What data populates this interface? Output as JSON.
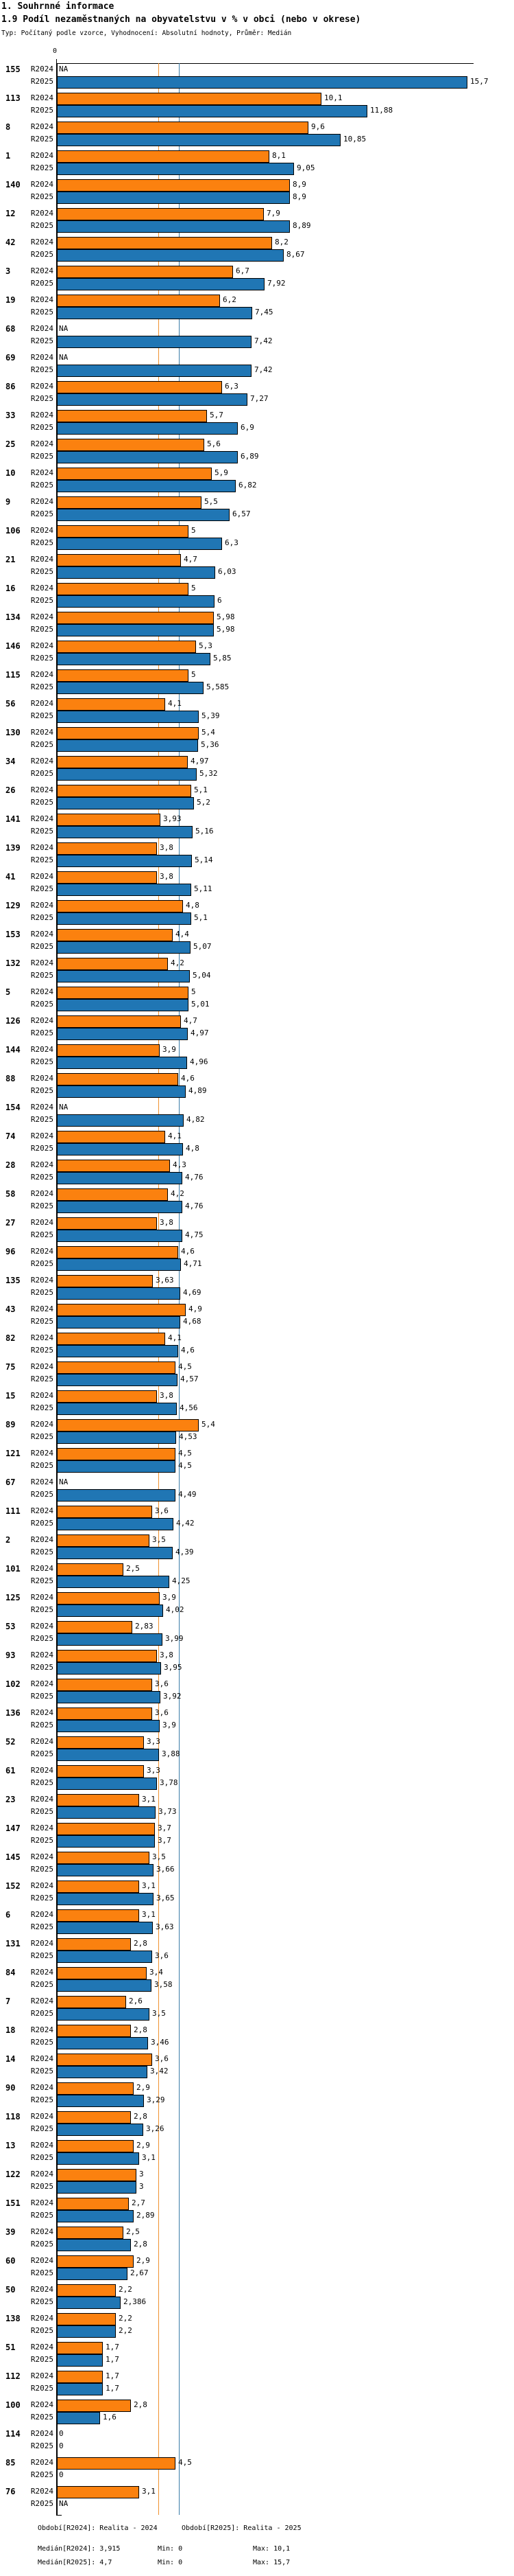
{
  "header": {
    "section_title": "1. Souhrnné informace",
    "chart_title": "1.9 Podíl nezaměstnaných na obyvatelstvu v % v obci (nebo v okrese)",
    "subtitle": "Typ: Počítaný podle vzorce, Vyhodnocení: Absolutní hodnoty, Průměr: Medián"
  },
  "chart_data": {
    "type": "bar",
    "orientation": "horizontal",
    "title": "1.9 Podíl nezaměstnaných na obyvatelstvu v % v obci (nebo v okrese)",
    "x_axis": {
      "min": 0,
      "max": 16,
      "zero_label": "0",
      "grid": false
    },
    "series_labels": {
      "r2024": "R2024",
      "r2025": "R2025"
    },
    "legend_position": "none",
    "na_label": "NA",
    "colors": {
      "r2024_bar": "#FB810F",
      "r2025_bar": "#2076B4",
      "median_line_r2024": "#F0922E",
      "median_line_r2025": "#3A7CA8"
    },
    "median_lines": {
      "r2024": 3.915,
      "r2025": 4.7
    },
    "groups": [
      {
        "id": "155",
        "r2024": "NA",
        "r2025": "15,7"
      },
      {
        "id": "113",
        "r2024": "10,1",
        "r2025": "11,88"
      },
      {
        "id": "8",
        "r2024": "9,6",
        "r2025": "10,85"
      },
      {
        "id": "1",
        "r2024": "8,1",
        "r2025": "9,05"
      },
      {
        "id": "140",
        "r2024": "8,9",
        "r2025": "8,9"
      },
      {
        "id": "12",
        "r2024": "7,9",
        "r2025": "8,89"
      },
      {
        "id": "42",
        "r2024": "8,2",
        "r2025": "8,67"
      },
      {
        "id": "3",
        "r2024": "6,7",
        "r2025": "7,92"
      },
      {
        "id": "19",
        "r2024": "6,2",
        "r2025": "7,45"
      },
      {
        "id": "68",
        "r2024": "NA",
        "r2025": "7,42"
      },
      {
        "id": "69",
        "r2024": "NA",
        "r2025": "7,42"
      },
      {
        "id": "86",
        "r2024": "6,3",
        "r2025": "7,27"
      },
      {
        "id": "33",
        "r2024": "5,7",
        "r2025": "6,9"
      },
      {
        "id": "25",
        "r2024": "5,6",
        "r2025": "6,89"
      },
      {
        "id": "10",
        "r2024": "5,9",
        "r2025": "6,82"
      },
      {
        "id": "9",
        "r2024": "5,5",
        "r2025": "6,57"
      },
      {
        "id": "106",
        "r2024": "5",
        "r2025": "6,3"
      },
      {
        "id": "21",
        "r2024": "4,7",
        "r2025": "6,03"
      },
      {
        "id": "16",
        "r2024": "5",
        "r2025": "6"
      },
      {
        "id": "134",
        "r2024": "5,98",
        "r2025": "5,98"
      },
      {
        "id": "146",
        "r2024": "5,3",
        "r2025": "5,85"
      },
      {
        "id": "115",
        "r2024": "5",
        "r2025": "5,585"
      },
      {
        "id": "56",
        "r2024": "4,1",
        "r2025": "5,39"
      },
      {
        "id": "130",
        "r2024": "5,4",
        "r2025": "5,36"
      },
      {
        "id": "34",
        "r2024": "4,97",
        "r2025": "5,32"
      },
      {
        "id": "26",
        "r2024": "5,1",
        "r2025": "5,2"
      },
      {
        "id": "141",
        "r2024": "3,93",
        "r2025": "5,16"
      },
      {
        "id": "139",
        "r2024": "3,8",
        "r2025": "5,14"
      },
      {
        "id": "41",
        "r2024": "3,8",
        "r2025": "5,11"
      },
      {
        "id": "129",
        "r2024": "4,8",
        "r2025": "5,1"
      },
      {
        "id": "153",
        "r2024": "4,4",
        "r2025": "5,07"
      },
      {
        "id": "132",
        "r2024": "4,2",
        "r2025": "5,04"
      },
      {
        "id": "5",
        "r2024": "5",
        "r2025": "5,01"
      },
      {
        "id": "126",
        "r2024": "4,7",
        "r2025": "4,97"
      },
      {
        "id": "144",
        "r2024": "3,9",
        "r2025": "4,96"
      },
      {
        "id": "88",
        "r2024": "4,6",
        "r2025": "4,89"
      },
      {
        "id": "154",
        "r2024": "NA",
        "r2025": "4,82"
      },
      {
        "id": "74",
        "r2024": "4,1",
        "r2025": "4,8"
      },
      {
        "id": "28",
        "r2024": "4,3",
        "r2025": "4,76"
      },
      {
        "id": "58",
        "r2024": "4,2",
        "r2025": "4,76"
      },
      {
        "id": "27",
        "r2024": "3,8",
        "r2025": "4,75"
      },
      {
        "id": "96",
        "r2024": "4,6",
        "r2025": "4,71"
      },
      {
        "id": "135",
        "r2024": "3,63",
        "r2025": "4,69"
      },
      {
        "id": "43",
        "r2024": "4,9",
        "r2025": "4,68"
      },
      {
        "id": "82",
        "r2024": "4,1",
        "r2025": "4,6"
      },
      {
        "id": "75",
        "r2024": "4,5",
        "r2025": "4,57"
      },
      {
        "id": "15",
        "r2024": "3,8",
        "r2025": "4,56"
      },
      {
        "id": "89",
        "r2024": "5,4",
        "r2025": "4,53"
      },
      {
        "id": "121",
        "r2024": "4,5",
        "r2025": "4,5"
      },
      {
        "id": "67",
        "r2024": "NA",
        "r2025": "4,49"
      },
      {
        "id": "111",
        "r2024": "3,6",
        "r2025": "4,42"
      },
      {
        "id": "2",
        "r2024": "3,5",
        "r2025": "4,39"
      },
      {
        "id": "101",
        "r2024": "2,5",
        "r2025": "4,25"
      },
      {
        "id": "125",
        "r2024": "3,9",
        "r2025": "4,02"
      },
      {
        "id": "53",
        "r2024": "2,83",
        "r2025": "3,99"
      },
      {
        "id": "93",
        "r2024": "3,8",
        "r2025": "3,95"
      },
      {
        "id": "102",
        "r2024": "3,6",
        "r2025": "3,92"
      },
      {
        "id": "136",
        "r2024": "3,6",
        "r2025": "3,9"
      },
      {
        "id": "52",
        "r2024": "3,3",
        "r2025": "3,88"
      },
      {
        "id": "61",
        "r2024": "3,3",
        "r2025": "3,78"
      },
      {
        "id": "23",
        "r2024": "3,1",
        "r2025": "3,73"
      },
      {
        "id": "147",
        "r2024": "3,7",
        "r2025": "3,7"
      },
      {
        "id": "145",
        "r2024": "3,5",
        "r2025": "3,66"
      },
      {
        "id": "152",
        "r2024": "3,1",
        "r2025": "3,65"
      },
      {
        "id": "6",
        "r2024": "3,1",
        "r2025": "3,63"
      },
      {
        "id": "131",
        "r2024": "2,8",
        "r2025": "3,6"
      },
      {
        "id": "84",
        "r2024": "3,4",
        "r2025": "3,58"
      },
      {
        "id": "7",
        "r2024": "2,6",
        "r2025": "3,5"
      },
      {
        "id": "18",
        "r2024": "2,8",
        "r2025": "3,46"
      },
      {
        "id": "14",
        "r2024": "3,6",
        "r2025": "3,42"
      },
      {
        "id": "90",
        "r2024": "2,9",
        "r2025": "3,29"
      },
      {
        "id": "118",
        "r2024": "2,8",
        "r2025": "3,26"
      },
      {
        "id": "13",
        "r2024": "2,9",
        "r2025": "3,1"
      },
      {
        "id": "122",
        "r2024": "3",
        "r2025": "3"
      },
      {
        "id": "151",
        "r2024": "2,7",
        "r2025": "2,89"
      },
      {
        "id": "39",
        "r2024": "2,5",
        "r2025": "2,8"
      },
      {
        "id": "60",
        "r2024": "2,9",
        "r2025": "2,67"
      },
      {
        "id": "50",
        "r2024": "2,2",
        "r2025": "2,386"
      },
      {
        "id": "138",
        "r2024": "2,2",
        "r2025": "2,2"
      },
      {
        "id": "51",
        "r2024": "1,7",
        "r2025": "1,7"
      },
      {
        "id": "112",
        "r2024": "1,7",
        "r2025": "1,7"
      },
      {
        "id": "100",
        "r2024": "2,8",
        "r2025": "1,6"
      },
      {
        "id": "114",
        "r2024": "0",
        "r2025": "0"
      },
      {
        "id": "85",
        "r2024": "4,5",
        "r2025": "0"
      },
      {
        "id": "76",
        "r2024": "3,1",
        "r2025": "NA"
      }
    ]
  },
  "footer": {
    "period_r2024": "Období[R2024]: Realita - 2024",
    "period_r2025": "Období[R2025]: Realita - 2025",
    "median_r2024": "Medián[R2024]: 3,915",
    "min_r2024": "Min: 0",
    "max_r2024": "Max: 10,1",
    "median_r2025": "Medián[R2025]: 4,7",
    "min_r2025": "Min: 0",
    "max_r2025": "Max: 15,7"
  }
}
